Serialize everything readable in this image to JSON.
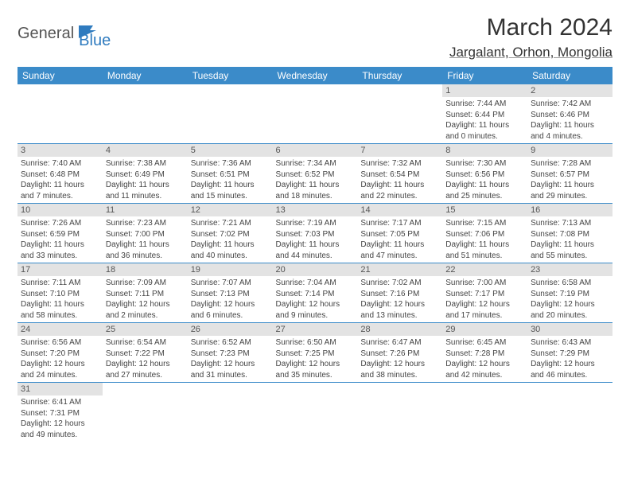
{
  "logo": {
    "general": "General",
    "blue": "Blue"
  },
  "title": "March 2024",
  "location": "Jargalant, Orhon, Mongolia",
  "colors": {
    "header_bg": "#3b8bc9",
    "header_text": "#ffffff",
    "daynum_bg": "#e3e3e3",
    "row_border": "#3b8bc9",
    "logo_blue": "#2f7bbf",
    "logo_gray": "#555555"
  },
  "weekdays": [
    "Sunday",
    "Monday",
    "Tuesday",
    "Wednesday",
    "Thursday",
    "Friday",
    "Saturday"
  ],
  "grid": [
    [
      null,
      null,
      null,
      null,
      null,
      {
        "n": "1",
        "sr": "Sunrise: 7:44 AM",
        "ss": "Sunset: 6:44 PM",
        "dl1": "Daylight: 11 hours",
        "dl2": "and 0 minutes."
      },
      {
        "n": "2",
        "sr": "Sunrise: 7:42 AM",
        "ss": "Sunset: 6:46 PM",
        "dl1": "Daylight: 11 hours",
        "dl2": "and 4 minutes."
      }
    ],
    [
      {
        "n": "3",
        "sr": "Sunrise: 7:40 AM",
        "ss": "Sunset: 6:48 PM",
        "dl1": "Daylight: 11 hours",
        "dl2": "and 7 minutes."
      },
      {
        "n": "4",
        "sr": "Sunrise: 7:38 AM",
        "ss": "Sunset: 6:49 PM",
        "dl1": "Daylight: 11 hours",
        "dl2": "and 11 minutes."
      },
      {
        "n": "5",
        "sr": "Sunrise: 7:36 AM",
        "ss": "Sunset: 6:51 PM",
        "dl1": "Daylight: 11 hours",
        "dl2": "and 15 minutes."
      },
      {
        "n": "6",
        "sr": "Sunrise: 7:34 AM",
        "ss": "Sunset: 6:52 PM",
        "dl1": "Daylight: 11 hours",
        "dl2": "and 18 minutes."
      },
      {
        "n": "7",
        "sr": "Sunrise: 7:32 AM",
        "ss": "Sunset: 6:54 PM",
        "dl1": "Daylight: 11 hours",
        "dl2": "and 22 minutes."
      },
      {
        "n": "8",
        "sr": "Sunrise: 7:30 AM",
        "ss": "Sunset: 6:56 PM",
        "dl1": "Daylight: 11 hours",
        "dl2": "and 25 minutes."
      },
      {
        "n": "9",
        "sr": "Sunrise: 7:28 AM",
        "ss": "Sunset: 6:57 PM",
        "dl1": "Daylight: 11 hours",
        "dl2": "and 29 minutes."
      }
    ],
    [
      {
        "n": "10",
        "sr": "Sunrise: 7:26 AM",
        "ss": "Sunset: 6:59 PM",
        "dl1": "Daylight: 11 hours",
        "dl2": "and 33 minutes."
      },
      {
        "n": "11",
        "sr": "Sunrise: 7:23 AM",
        "ss": "Sunset: 7:00 PM",
        "dl1": "Daylight: 11 hours",
        "dl2": "and 36 minutes."
      },
      {
        "n": "12",
        "sr": "Sunrise: 7:21 AM",
        "ss": "Sunset: 7:02 PM",
        "dl1": "Daylight: 11 hours",
        "dl2": "and 40 minutes."
      },
      {
        "n": "13",
        "sr": "Sunrise: 7:19 AM",
        "ss": "Sunset: 7:03 PM",
        "dl1": "Daylight: 11 hours",
        "dl2": "and 44 minutes."
      },
      {
        "n": "14",
        "sr": "Sunrise: 7:17 AM",
        "ss": "Sunset: 7:05 PM",
        "dl1": "Daylight: 11 hours",
        "dl2": "and 47 minutes."
      },
      {
        "n": "15",
        "sr": "Sunrise: 7:15 AM",
        "ss": "Sunset: 7:06 PM",
        "dl1": "Daylight: 11 hours",
        "dl2": "and 51 minutes."
      },
      {
        "n": "16",
        "sr": "Sunrise: 7:13 AM",
        "ss": "Sunset: 7:08 PM",
        "dl1": "Daylight: 11 hours",
        "dl2": "and 55 minutes."
      }
    ],
    [
      {
        "n": "17",
        "sr": "Sunrise: 7:11 AM",
        "ss": "Sunset: 7:10 PM",
        "dl1": "Daylight: 11 hours",
        "dl2": "and 58 minutes."
      },
      {
        "n": "18",
        "sr": "Sunrise: 7:09 AM",
        "ss": "Sunset: 7:11 PM",
        "dl1": "Daylight: 12 hours",
        "dl2": "and 2 minutes."
      },
      {
        "n": "19",
        "sr": "Sunrise: 7:07 AM",
        "ss": "Sunset: 7:13 PM",
        "dl1": "Daylight: 12 hours",
        "dl2": "and 6 minutes."
      },
      {
        "n": "20",
        "sr": "Sunrise: 7:04 AM",
        "ss": "Sunset: 7:14 PM",
        "dl1": "Daylight: 12 hours",
        "dl2": "and 9 minutes."
      },
      {
        "n": "21",
        "sr": "Sunrise: 7:02 AM",
        "ss": "Sunset: 7:16 PM",
        "dl1": "Daylight: 12 hours",
        "dl2": "and 13 minutes."
      },
      {
        "n": "22",
        "sr": "Sunrise: 7:00 AM",
        "ss": "Sunset: 7:17 PM",
        "dl1": "Daylight: 12 hours",
        "dl2": "and 17 minutes."
      },
      {
        "n": "23",
        "sr": "Sunrise: 6:58 AM",
        "ss": "Sunset: 7:19 PM",
        "dl1": "Daylight: 12 hours",
        "dl2": "and 20 minutes."
      }
    ],
    [
      {
        "n": "24",
        "sr": "Sunrise: 6:56 AM",
        "ss": "Sunset: 7:20 PM",
        "dl1": "Daylight: 12 hours",
        "dl2": "and 24 minutes."
      },
      {
        "n": "25",
        "sr": "Sunrise: 6:54 AM",
        "ss": "Sunset: 7:22 PM",
        "dl1": "Daylight: 12 hours",
        "dl2": "and 27 minutes."
      },
      {
        "n": "26",
        "sr": "Sunrise: 6:52 AM",
        "ss": "Sunset: 7:23 PM",
        "dl1": "Daylight: 12 hours",
        "dl2": "and 31 minutes."
      },
      {
        "n": "27",
        "sr": "Sunrise: 6:50 AM",
        "ss": "Sunset: 7:25 PM",
        "dl1": "Daylight: 12 hours",
        "dl2": "and 35 minutes."
      },
      {
        "n": "28",
        "sr": "Sunrise: 6:47 AM",
        "ss": "Sunset: 7:26 PM",
        "dl1": "Daylight: 12 hours",
        "dl2": "and 38 minutes."
      },
      {
        "n": "29",
        "sr": "Sunrise: 6:45 AM",
        "ss": "Sunset: 7:28 PM",
        "dl1": "Daylight: 12 hours",
        "dl2": "and 42 minutes."
      },
      {
        "n": "30",
        "sr": "Sunrise: 6:43 AM",
        "ss": "Sunset: 7:29 PM",
        "dl1": "Daylight: 12 hours",
        "dl2": "and 46 minutes."
      }
    ],
    [
      {
        "n": "31",
        "sr": "Sunrise: 6:41 AM",
        "ss": "Sunset: 7:31 PM",
        "dl1": "Daylight: 12 hours",
        "dl2": "and 49 minutes."
      },
      null,
      null,
      null,
      null,
      null,
      null
    ]
  ]
}
